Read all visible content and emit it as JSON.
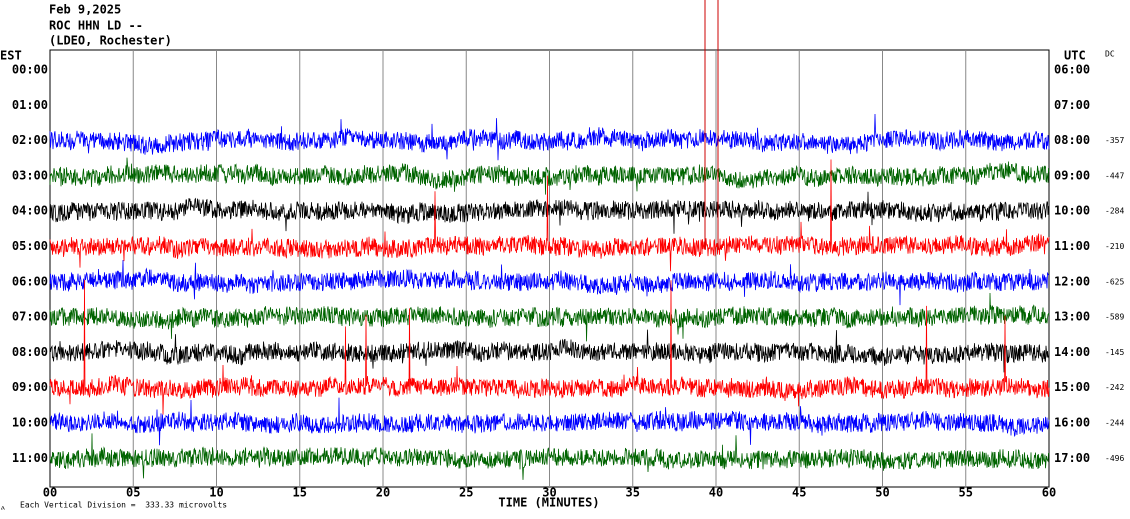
{
  "header": {
    "date": "Feb 9,2025",
    "station": "ROC HHN LD --",
    "network": "(LDEO, Rochester)"
  },
  "left_axis": {
    "title": "EST",
    "labels": [
      "00:00",
      "01:00",
      "02:00",
      "03:00",
      "04:00",
      "05:00",
      "06:00",
      "07:00",
      "08:00",
      "09:00",
      "10:00",
      "11:00"
    ]
  },
  "right_axis": {
    "title": "UTC",
    "labels": [
      "06:00",
      "07:00",
      "08:00",
      "09:00",
      "10:00",
      "11:00",
      "12:00",
      "13:00",
      "14:00",
      "15:00",
      "16:00",
      "17:00"
    ]
  },
  "dc_title": "DC",
  "dc_values": [
    "-357",
    "-447",
    "-284",
    "-210",
    "-625",
    "-589",
    "-145",
    "-242",
    "-244",
    "-496"
  ],
  "x_axis": {
    "title": "TIME (MINUTES)",
    "ticks": [
      "00",
      "05",
      "10",
      "15",
      "20",
      "25",
      "30",
      "35",
      "40",
      "45",
      "50",
      "55",
      "60"
    ]
  },
  "footer": {
    "marker": "ⲁ",
    "note": "Each Vertical Division =  333.33 microvolts"
  }
}
